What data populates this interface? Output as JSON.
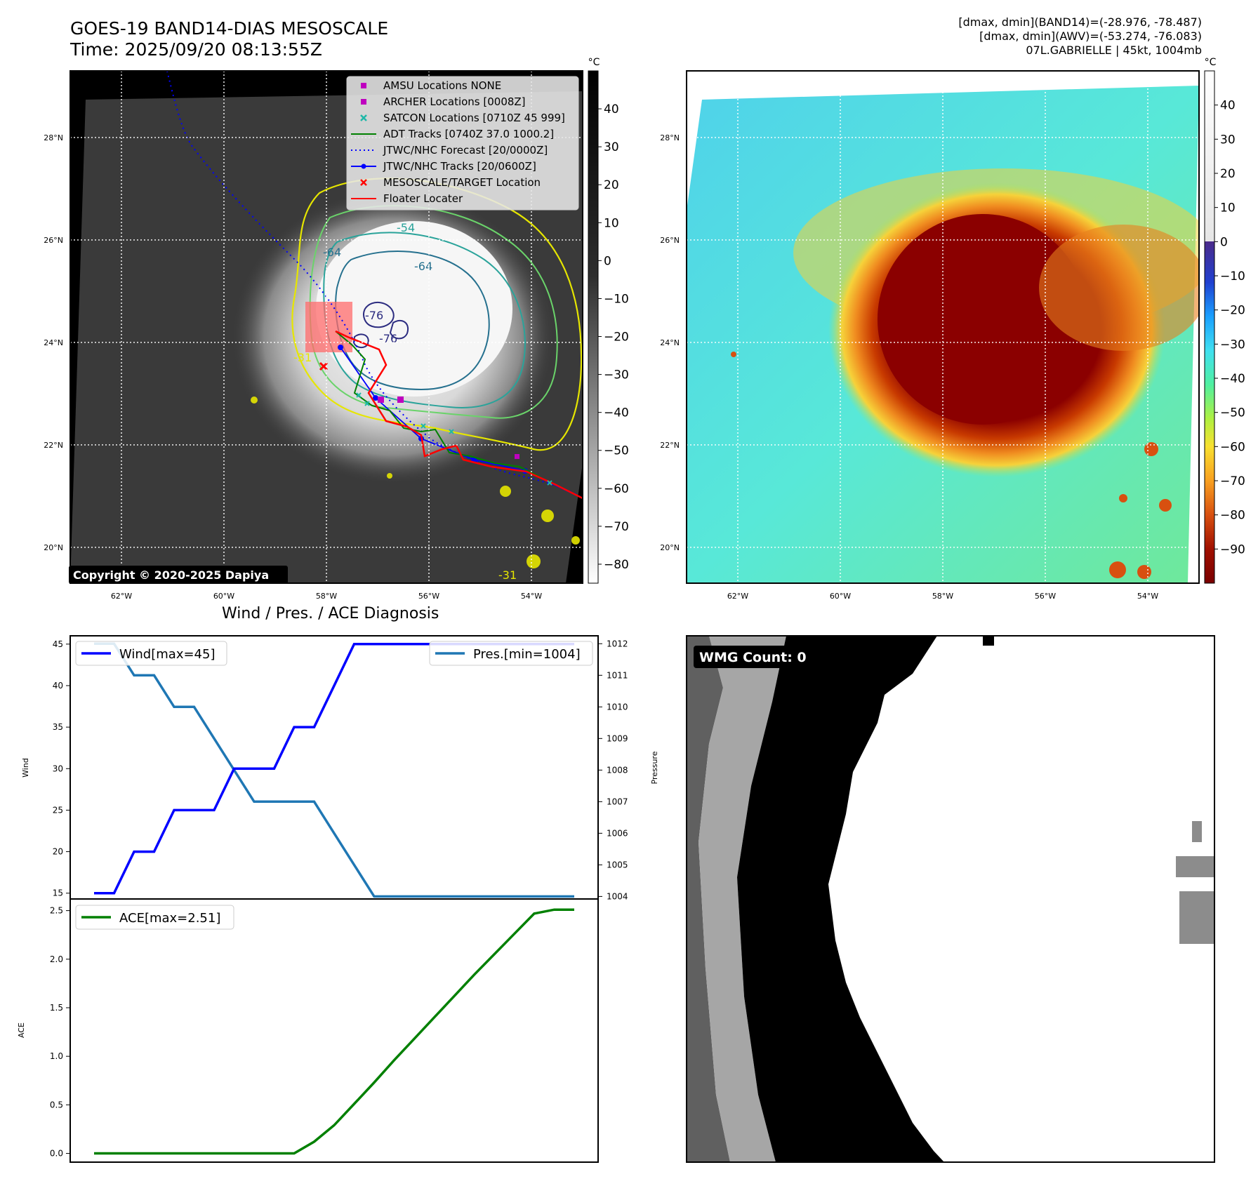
{
  "header": {
    "title_line1": "GOES-19 BAND14-DIAS MESOSCALE",
    "title_line2": "Time: 2025/09/20 08:13:55Z",
    "meta_line1": "[dmax, dmin](BAND14)=(-28.976, -78.487)",
    "meta_line2": "[dmax, dmin](AWV)=(-53.274, -76.083)",
    "meta_line3": "07L.GABRIELLE | 45kt, 1004mb"
  },
  "map_axes": {
    "lat_ticks": [
      "20°N",
      "22°N",
      "24°N",
      "26°N",
      "28°N"
    ],
    "lat_values": [
      20,
      22,
      24,
      26,
      28
    ],
    "lon_ticks": [
      "62°W",
      "60°W",
      "58°W",
      "56°W",
      "54°W"
    ],
    "lon_values": [
      -62,
      -60,
      -58,
      -56,
      -54
    ],
    "lon_range": [
      -63,
      -53
    ],
    "lat_range": [
      19.3,
      29.3
    ]
  },
  "ir_panel": {
    "copyright": "Copyright © 2020-2025 Dapiya",
    "colorbar_unit": "°C",
    "colorbar_ticks": [
      "40",
      "30",
      "20",
      "10",
      "0",
      "−10",
      "−20",
      "−30",
      "−40",
      "−50",
      "−60",
      "−70",
      "−80"
    ],
    "colorbar_values": [
      40,
      30,
      20,
      10,
      0,
      -10,
      -20,
      -30,
      -40,
      -50,
      -60,
      -70,
      -80
    ],
    "colorbar_range": [
      -85,
      50
    ],
    "legend": [
      {
        "label": "AMSU Locations NONE",
        "color": "#bf00bf",
        "marker": "square"
      },
      {
        "label": "ARCHER Locations [0008Z]",
        "color": "#bf00bf",
        "marker": "square"
      },
      {
        "label": "SATCON Locations [0710Z 45 999]",
        "color": "#1fb8a8",
        "marker": "x"
      },
      {
        "label": "ADT Tracks [0740Z 37.0 1000.2]",
        "color": "#008000",
        "marker": "line"
      },
      {
        "label": "JTWC/NHC Forecast [20/0000Z]",
        "color": "#0000ff",
        "marker": "dotted"
      },
      {
        "label": "JTWC/NHC Tracks [20/0600Z]",
        "color": "#0000ff",
        "marker": "line-dot"
      },
      {
        "label": "MESOSCALE/TARGET Location",
        "color": "#ff0000",
        "marker": "x"
      },
      {
        "label": "Floater Locater",
        "color": "#ff0000",
        "marker": "line"
      }
    ],
    "contour_labels": [
      "-54",
      "-64",
      "-64",
      "-76",
      "-76",
      "-31",
      "-31"
    ]
  },
  "awv_panel": {
    "colorbar_unit": "°C",
    "colorbar_ticks": [
      "40",
      "30",
      "20",
      "10",
      "0",
      "−10",
      "−20",
      "−30",
      "−40",
      "−50",
      "−60",
      "−70",
      "−80",
      "−90"
    ],
    "colorbar_values": [
      40,
      30,
      20,
      10,
      0,
      -10,
      -20,
      -30,
      -40,
      -50,
      -60,
      -70,
      -80,
      -90
    ],
    "colorbar_range": [
      -100,
      50
    ]
  },
  "diagnosis": {
    "title": "Wind / Pres. / ACE Diagnosis",
    "wind_ylabel": "Wind",
    "pres_ylabel": "Pressure",
    "ace_ylabel": "ACE",
    "wind_legend": "Wind[max=45]",
    "pres_legend": "Pres.[min=1004]",
    "ace_legend": "ACE[max=2.51]",
    "wind_ticks": [
      "15",
      "20",
      "25",
      "30",
      "35",
      "40",
      "45"
    ],
    "pres_ticks": [
      "1004",
      "1005",
      "1006",
      "1007",
      "1008",
      "1009",
      "1010",
      "1011",
      "1012"
    ],
    "ace_ticks": [
      "0.0",
      "0.5",
      "1.0",
      "1.5",
      "2.0",
      "2.5"
    ]
  },
  "wmg_panel": {
    "label": "WMG Count: 0"
  },
  "chart_data": [
    {
      "type": "line",
      "title": "Wind / Pres. / ACE Diagnosis",
      "ylabel": "Wind",
      "ylim": [
        14.3,
        46.0
      ],
      "x": [
        0,
        1,
        2,
        3,
        4,
        5,
        6,
        7,
        8,
        9,
        10,
        11,
        12,
        13,
        14,
        15,
        16,
        17,
        18,
        19,
        20,
        21,
        22,
        23,
        24
      ],
      "series": [
        {
          "name": "Wind[max=45]",
          "color": "#0000ff",
          "values": [
            15,
            15,
            20,
            20,
            25,
            25,
            25,
            30,
            30,
            30,
            35,
            35,
            40,
            45,
            45,
            45,
            45,
            45,
            45,
            45,
            45,
            45,
            45,
            45,
            45
          ]
        }
      ]
    },
    {
      "type": "line",
      "ylabel": "Pressure",
      "ylim": [
        1003.92,
        1012.25
      ],
      "x": [
        0,
        1,
        2,
        3,
        4,
        5,
        6,
        7,
        8,
        9,
        10,
        11,
        12,
        13,
        14,
        15,
        16,
        17,
        18,
        19,
        20,
        21,
        22,
        23,
        24
      ],
      "series": [
        {
          "name": "Pres.[min=1004]",
          "color": "#1f77b4",
          "values": [
            1012,
            1012,
            1011,
            1011,
            1010,
            1010,
            1009,
            1008,
            1007,
            1007,
            1007,
            1007,
            1006,
            1005,
            1004,
            1004,
            1004,
            1004,
            1004,
            1004,
            1004,
            1004,
            1004,
            1004,
            1004
          ]
        }
      ]
    },
    {
      "type": "line",
      "ylabel": "ACE",
      "ylim": [
        -0.09,
        2.62
      ],
      "x": [
        0,
        1,
        2,
        3,
        4,
        5,
        6,
        7,
        8,
        9,
        10,
        11,
        12,
        13,
        14,
        15,
        16,
        17,
        18,
        19,
        20,
        21,
        22,
        23,
        24
      ],
      "series": [
        {
          "name": "ACE[max=2.51]",
          "color": "#008000",
          "values": [
            0,
            0,
            0,
            0,
            0,
            0,
            0,
            0,
            0,
            0,
            0,
            0.12,
            0.29,
            0.51,
            0.73,
            0.96,
            1.18,
            1.4,
            1.62,
            1.84,
            2.05,
            2.26,
            2.47,
            2.51,
            2.51
          ]
        }
      ]
    }
  ]
}
